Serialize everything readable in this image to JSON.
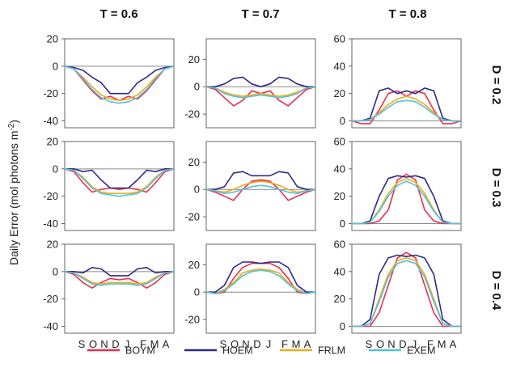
{
  "figure": {
    "y_axis_label": "Daily Error (mol photons m",
    "y_axis_label_superscript": "-2",
    "y_axis_label_close": ")",
    "column_titles": [
      "T = 0.6",
      "T = 0.7",
      "T = 0.8"
    ],
    "row_titles": [
      "D = 0.2",
      "D = 0.3",
      "D = 0.4"
    ],
    "x_tick_labels": [
      "S",
      "O",
      "N",
      "D",
      "J",
      "F",
      "M",
      "A"
    ]
  },
  "legend": [
    {
      "name": "BOYM",
      "color": "#e8304f"
    },
    {
      "name": "HOEM",
      "color": "#2e2a86"
    },
    {
      "name": "FRLM",
      "color": "#f2a916"
    },
    {
      "name": "EXEM",
      "color": "#4fc3dc"
    }
  ],
  "chart_data": [
    {
      "type": "line",
      "row": 0,
      "col": 0,
      "ylim": [
        -45,
        20
      ],
      "yticks": [
        20,
        0,
        -20,
        -40
      ],
      "x": [
        0,
        1,
        2,
        3,
        4,
        5,
        6,
        7,
        8,
        9,
        10,
        11,
        12
      ],
      "series": [
        {
          "name": "BOYM",
          "values": [
            0,
            -2,
            -10,
            -18,
            -24,
            -22,
            -25,
            -22,
            -24,
            -18,
            -10,
            -2,
            0
          ]
        },
        {
          "name": "HOEM",
          "values": [
            0,
            -1,
            -3,
            -8,
            -12,
            -20,
            -20,
            -20,
            -12,
            -8,
            -3,
            -1,
            0
          ]
        },
        {
          "name": "FRLM",
          "values": [
            0,
            -2,
            -8,
            -15,
            -21,
            -24,
            -25,
            -24,
            -21,
            -15,
            -8,
            -2,
            0
          ]
        },
        {
          "name": "EXEM",
          "values": [
            0,
            -2,
            -9,
            -17,
            -23,
            -26,
            -27,
            -26,
            -23,
            -17,
            -9,
            -2,
            0
          ]
        }
      ]
    },
    {
      "type": "line",
      "row": 0,
      "col": 1,
      "ylim": [
        -30,
        35
      ],
      "yticks": [
        20,
        0,
        -20
      ],
      "x": [
        0,
        1,
        2,
        3,
        4,
        5,
        6,
        7,
        8,
        9,
        10,
        11,
        12
      ],
      "series": [
        {
          "name": "BOYM",
          "values": [
            0,
            -2,
            -8,
            -14,
            -10,
            -3,
            -5,
            -3,
            -10,
            -14,
            -8,
            -2,
            0
          ]
        },
        {
          "name": "HOEM",
          "values": [
            0,
            0,
            2,
            6,
            7,
            2,
            0,
            2,
            7,
            6,
            2,
            0,
            0
          ]
        },
        {
          "name": "FRLM",
          "values": [
            0,
            -1,
            -4,
            -6,
            -7,
            -6,
            -5,
            -6,
            -7,
            -6,
            -4,
            -1,
            0
          ]
        },
        {
          "name": "EXEM",
          "values": [
            0,
            -1,
            -5,
            -7,
            -8,
            -7,
            -6,
            -7,
            -8,
            -7,
            -5,
            -1,
            0
          ]
        }
      ]
    },
    {
      "type": "line",
      "row": 0,
      "col": 2,
      "ylim": [
        -5,
        60
      ],
      "yticks": [
        60,
        40,
        20,
        0
      ],
      "x": [
        0,
        1,
        2,
        3,
        4,
        5,
        6,
        7,
        8,
        9,
        10,
        11,
        12
      ],
      "series": [
        {
          "name": "BOYM",
          "values": [
            0,
            -2,
            -2,
            8,
            20,
            22,
            18,
            22,
            20,
            8,
            -2,
            -2,
            0
          ]
        },
        {
          "name": "HOEM",
          "values": [
            0,
            0,
            2,
            22,
            24,
            20,
            22,
            20,
            24,
            22,
            2,
            0,
            0
          ]
        },
        {
          "name": "FRLM",
          "values": [
            0,
            0,
            1,
            6,
            12,
            16,
            18,
            16,
            12,
            6,
            1,
            0,
            0
          ]
        },
        {
          "name": "EXEM",
          "values": [
            0,
            0,
            1,
            5,
            10,
            14,
            15,
            14,
            10,
            5,
            1,
            0,
            0
          ]
        }
      ]
    },
    {
      "type": "line",
      "row": 1,
      "col": 0,
      "ylim": [
        -45,
        20
      ],
      "yticks": [
        20,
        0,
        -20,
        -40
      ],
      "x": [
        0,
        1,
        2,
        3,
        4,
        5,
        6,
        7,
        8,
        9,
        10,
        11,
        12
      ],
      "series": [
        {
          "name": "BOYM",
          "values": [
            0,
            -2,
            -10,
            -17,
            -15,
            -14,
            -15,
            -14,
            -15,
            -17,
            -10,
            -2,
            0
          ]
        },
        {
          "name": "HOEM",
          "values": [
            0,
            0,
            -2,
            -1,
            -8,
            -14,
            -14,
            -14,
            -8,
            -1,
            -2,
            0,
            0
          ]
        },
        {
          "name": "FRLM",
          "values": [
            0,
            -1,
            -6,
            -13,
            -17,
            -18,
            -18,
            -18,
            -17,
            -13,
            -6,
            -1,
            0
          ]
        },
        {
          "name": "EXEM",
          "values": [
            0,
            -1,
            -7,
            -14,
            -18,
            -19,
            -20,
            -19,
            -18,
            -14,
            -7,
            -1,
            0
          ]
        }
      ]
    },
    {
      "type": "line",
      "row": 1,
      "col": 1,
      "ylim": [
        -30,
        35
      ],
      "yticks": [
        20,
        0,
        -20
      ],
      "x": [
        0,
        1,
        2,
        3,
        4,
        5,
        6,
        7,
        8,
        9,
        10,
        11,
        12
      ],
      "series": [
        {
          "name": "BOYM",
          "values": [
            0,
            -2,
            -5,
            -8,
            0,
            6,
            7,
            6,
            0,
            -8,
            -5,
            -2,
            0
          ]
        },
        {
          "name": "HOEM",
          "values": [
            0,
            0,
            2,
            12,
            13,
            10,
            10,
            10,
            13,
            12,
            2,
            0,
            0
          ]
        },
        {
          "name": "FRLM",
          "values": [
            0,
            -1,
            -2,
            0,
            3,
            5,
            6,
            5,
            3,
            0,
            -2,
            -1,
            0
          ]
        },
        {
          "name": "EXEM",
          "values": [
            0,
            -1,
            -3,
            -2,
            0,
            2,
            3,
            2,
            0,
            -2,
            -3,
            -1,
            0
          ]
        }
      ]
    },
    {
      "type": "line",
      "row": 1,
      "col": 2,
      "ylim": [
        -5,
        60
      ],
      "yticks": [
        60,
        40,
        20,
        0
      ],
      "x": [
        0,
        1,
        2,
        3,
        4,
        5,
        6,
        7,
        8,
        9,
        10,
        11,
        12
      ],
      "series": [
        {
          "name": "BOYM",
          "values": [
            0,
            0,
            0,
            2,
            10,
            32,
            36,
            32,
            10,
            2,
            0,
            0,
            0
          ]
        },
        {
          "name": "HOEM",
          "values": [
            0,
            0,
            2,
            20,
            33,
            35,
            34,
            35,
            33,
            20,
            2,
            0,
            0
          ]
        },
        {
          "name": "FRLM",
          "values": [
            0,
            0,
            1,
            10,
            22,
            30,
            33,
            30,
            22,
            10,
            1,
            0,
            0
          ]
        },
        {
          "name": "EXEM",
          "values": [
            0,
            0,
            1,
            9,
            20,
            28,
            31,
            28,
            20,
            9,
            1,
            0,
            0
          ]
        }
      ]
    },
    {
      "type": "line",
      "row": 2,
      "col": 0,
      "ylim": [
        -45,
        20
      ],
      "yticks": [
        20,
        0,
        -20,
        -40
      ],
      "x": [
        0,
        1,
        2,
        3,
        4,
        5,
        6,
        7,
        8,
        9,
        10,
        11,
        12
      ],
      "series": [
        {
          "name": "BOYM",
          "values": [
            0,
            -2,
            -8,
            -12,
            -8,
            -5,
            -6,
            -5,
            -8,
            -12,
            -8,
            -2,
            0
          ]
        },
        {
          "name": "HOEM",
          "values": [
            0,
            0,
            -1,
            3,
            2,
            -3,
            -3,
            -3,
            2,
            3,
            -1,
            0,
            0
          ]
        },
        {
          "name": "FRLM",
          "values": [
            0,
            -1,
            -4,
            -8,
            -9,
            -8,
            -8,
            -8,
            -9,
            -8,
            -4,
            -1,
            0
          ]
        },
        {
          "name": "EXEM",
          "values": [
            0,
            -1,
            -5,
            -9,
            -10,
            -9,
            -9,
            -9,
            -10,
            -9,
            -5,
            -1,
            0
          ]
        }
      ]
    },
    {
      "type": "line",
      "row": 2,
      "col": 1,
      "ylim": [
        -30,
        35
      ],
      "yticks": [
        20,
        0,
        -20
      ],
      "x": [
        0,
        1,
        2,
        3,
        4,
        5,
        6,
        7,
        8,
        9,
        10,
        11,
        12
      ],
      "series": [
        {
          "name": "BOYM",
          "values": [
            0,
            -1,
            0,
            10,
            18,
            21,
            21,
            21,
            18,
            10,
            0,
            -1,
            0
          ]
        },
        {
          "name": "HOEM",
          "values": [
            0,
            0,
            5,
            18,
            22,
            22,
            21,
            22,
            22,
            18,
            5,
            0,
            0
          ]
        },
        {
          "name": "FRLM",
          "values": [
            0,
            -1,
            2,
            7,
            14,
            16,
            17,
            16,
            14,
            7,
            2,
            -1,
            0
          ]
        },
        {
          "name": "EXEM",
          "values": [
            0,
            -1,
            1,
            6,
            12,
            15,
            16,
            15,
            12,
            6,
            1,
            -1,
            0
          ]
        }
      ]
    },
    {
      "type": "line",
      "row": 2,
      "col": 2,
      "ylim": [
        -5,
        60
      ],
      "yticks": [
        60,
        40,
        20,
        0
      ],
      "x": [
        0,
        1,
        2,
        3,
        4,
        5,
        6,
        7,
        8,
        9,
        10,
        11,
        12
      ],
      "series": [
        {
          "name": "BOYM",
          "values": [
            0,
            0,
            0,
            10,
            30,
            50,
            54,
            50,
            30,
            10,
            0,
            0,
            0
          ]
        },
        {
          "name": "HOEM",
          "values": [
            0,
            0,
            5,
            38,
            50,
            52,
            51,
            52,
            50,
            38,
            5,
            0,
            0
          ]
        },
        {
          "name": "FRLM",
          "values": [
            0,
            0,
            2,
            20,
            38,
            48,
            50,
            48,
            38,
            20,
            2,
            0,
            0
          ]
        },
        {
          "name": "EXEM",
          "values": [
            0,
            0,
            2,
            18,
            36,
            46,
            48,
            46,
            36,
            18,
            2,
            0,
            0
          ]
        }
      ]
    }
  ]
}
